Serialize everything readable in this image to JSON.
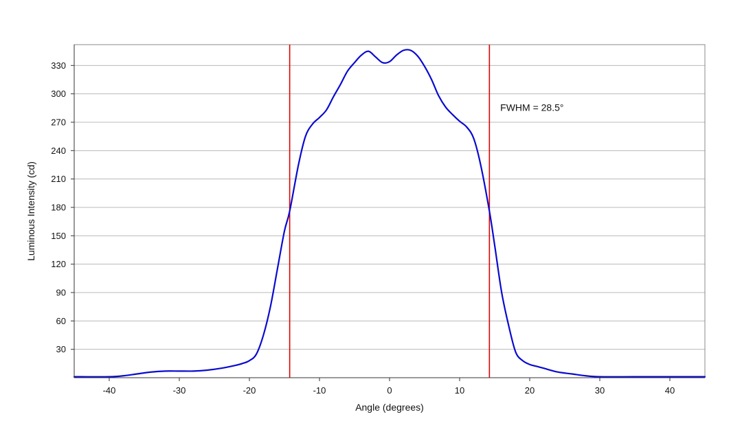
{
  "chart_data": {
    "type": "line",
    "title": "",
    "xlabel": "Angle (degrees)",
    "ylabel": "Luminous Intensity (cd)",
    "xlim": [
      -45,
      45
    ],
    "ylim": [
      0,
      352
    ],
    "x_ticks": [
      -40,
      -30,
      -20,
      -10,
      0,
      10,
      20,
      30,
      40
    ],
    "x_tick_labels": [
      "-40",
      "-30",
      "-20",
      "-10",
      "0",
      "10",
      "20",
      "30",
      "40"
    ],
    "y_ticks": [
      30,
      60,
      90,
      120,
      150,
      180,
      210,
      240,
      270,
      300,
      330
    ],
    "y_tick_labels": [
      "30",
      "60",
      "90",
      "120",
      "150",
      "180",
      "210",
      "240",
      "270",
      "300",
      "330"
    ],
    "grid": "horizontal",
    "series": [
      {
        "color": "#0a0ad0",
        "x": [
          -45,
          -40,
          -38,
          -36,
          -34,
          -32,
          -30,
          -28,
          -26,
          -24,
          -22,
          -21,
          -20,
          -19,
          -18,
          -17,
          -16,
          -15,
          -14.25,
          -13,
          -12,
          -11,
          -10,
          -9,
          -8,
          -7,
          -6,
          -5,
          -4,
          -3,
          -2,
          -1,
          0,
          1,
          2,
          3,
          4,
          5,
          6,
          7,
          8,
          9,
          10,
          11,
          12,
          13,
          14.25,
          15,
          16,
          17,
          18,
          19,
          20,
          21,
          22,
          24,
          26,
          28,
          30,
          35,
          40,
          45
        ],
        "y": [
          1,
          1,
          2,
          4,
          6,
          7,
          7,
          7,
          8,
          10,
          13,
          15,
          18,
          25,
          45,
          75,
          115,
          155,
          176,
          225,
          255,
          268,
          275,
          283,
          297,
          310,
          324,
          333,
          341,
          345,
          339,
          333,
          334,
          341,
          346,
          346,
          340,
          329,
          315,
          298,
          286,
          278,
          271,
          265,
          253,
          225,
          176,
          140,
          90,
          55,
          27,
          18,
          14,
          12,
          10,
          6,
          4,
          2,
          1,
          1,
          1,
          1
        ]
      }
    ],
    "vertical_markers": [
      {
        "x": -14.25,
        "color": "#e00000"
      },
      {
        "x": 14.25,
        "color": "#e00000"
      }
    ],
    "annotations": [
      {
        "text": "FWHM = 28.5°",
        "x": 15.8,
        "y": 282
      }
    ]
  }
}
